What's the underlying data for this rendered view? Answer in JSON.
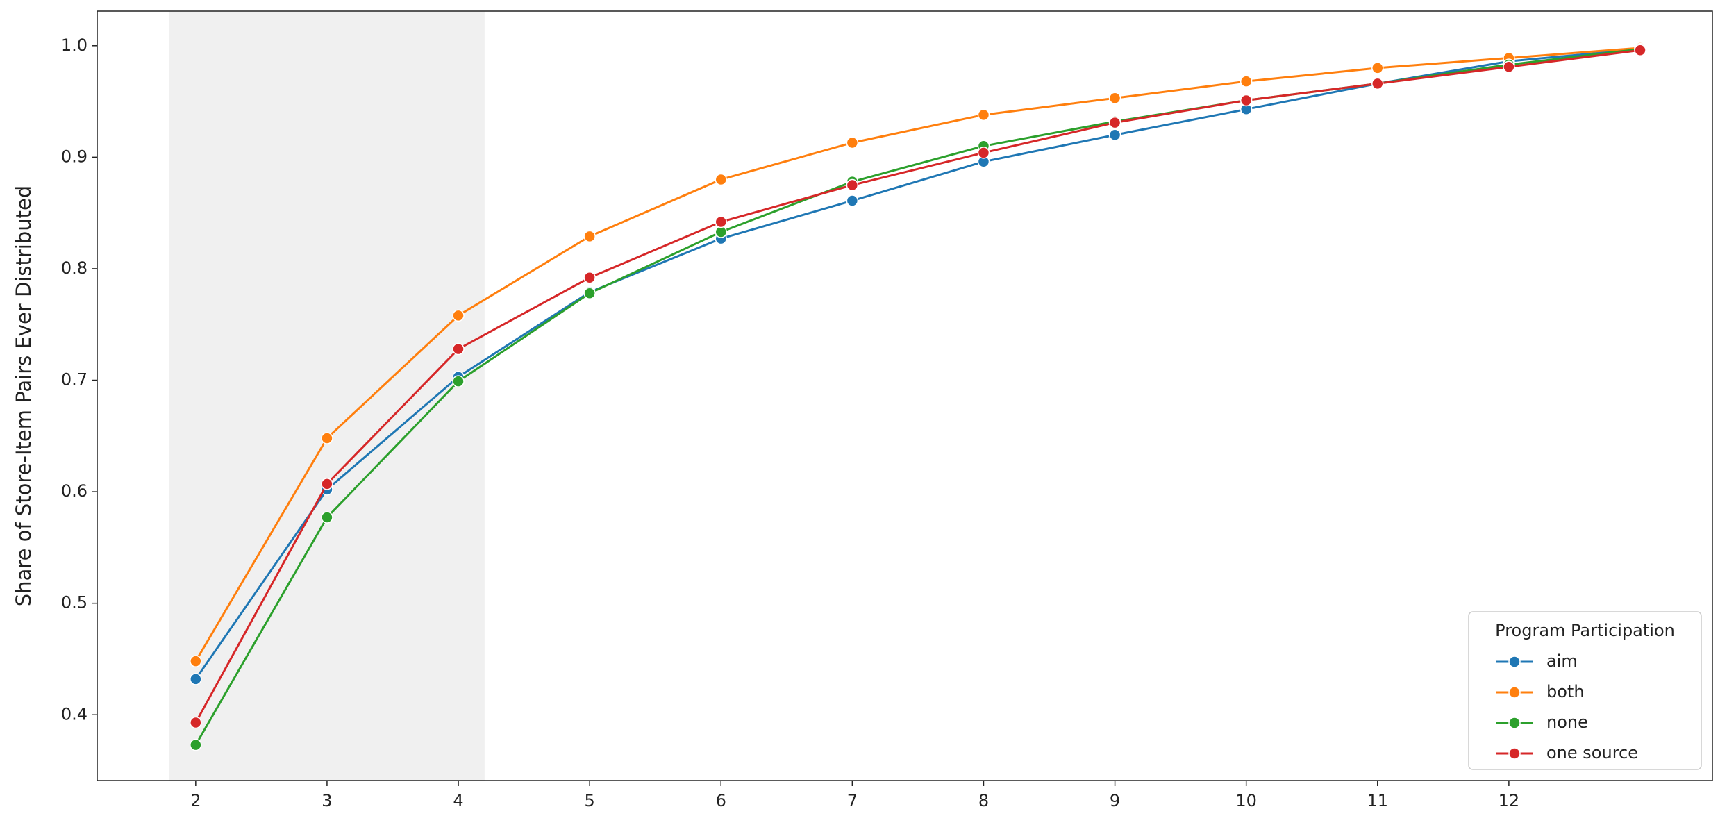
{
  "chart_data": {
    "type": "line",
    "y_label": "Share of Store-Item Pairs Ever Distributed",
    "x": [
      2,
      3,
      4,
      5,
      6,
      7,
      8,
      9,
      10,
      11,
      12,
      13
    ],
    "series": [
      {
        "name": "aim",
        "color": "#1f77b4",
        "values": [
          0.432,
          0.602,
          0.703,
          0.779,
          0.827,
          0.861,
          0.896,
          0.92,
          0.943,
          0.966,
          0.986,
          0.997
        ]
      },
      {
        "name": "both",
        "color": "#ff7f0e",
        "values": [
          0.448,
          0.648,
          0.758,
          0.829,
          0.88,
          0.913,
          0.938,
          0.953,
          0.968,
          0.98,
          0.989,
          0.998
        ]
      },
      {
        "name": "none",
        "color": "#2ca02c",
        "values": [
          0.373,
          0.577,
          0.699,
          0.778,
          0.833,
          0.878,
          0.91,
          0.932,
          0.951,
          0.966,
          0.983,
          0.997
        ]
      },
      {
        "name": "one source",
        "color": "#d62728",
        "values": [
          0.393,
          0.607,
          0.728,
          0.792,
          0.842,
          0.875,
          0.904,
          0.931,
          0.951,
          0.966,
          0.981,
          0.996
        ]
      }
    ],
    "xlim": [
      1.25,
      13.55
    ],
    "xticks": [
      2,
      3,
      4,
      5,
      6,
      7,
      8,
      9,
      10,
      11,
      12
    ],
    "ylim": [
      0.341,
      1.031
    ],
    "yticks": [
      0.4,
      0.5,
      0.6,
      0.7,
      0.8,
      0.9,
      {
        "value": 1.0,
        "label": "1.0"
      }
    ],
    "shaded_span": [
      1.8,
      4.2
    ],
    "shade_color": "#f0f0f0",
    "legend_title": "Program Participation",
    "legend_position": "lower right",
    "grid": false
  }
}
